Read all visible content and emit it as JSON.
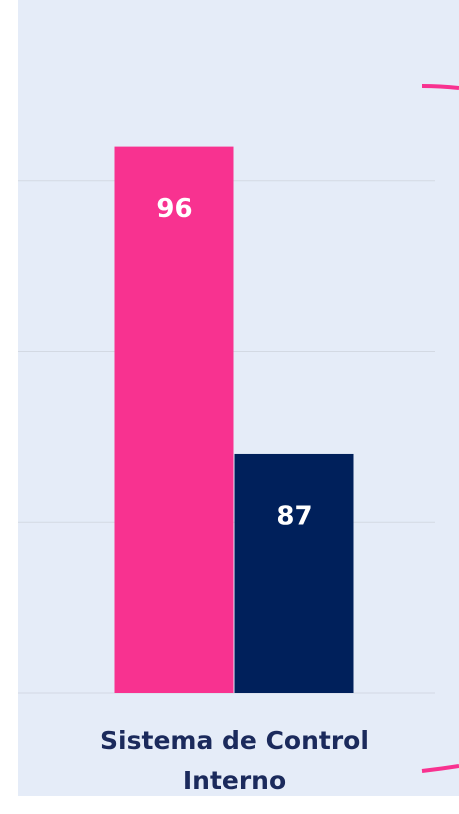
{
  "chart_data": {
    "type": "bar",
    "categories": [
      "Sistema de Control Interno"
    ],
    "series": [
      {
        "color": "#f83290",
        "values": [
          96
        ]
      },
      {
        "color": "#00205b",
        "values": [
          87
        ]
      }
    ],
    "ylim": [
      80,
      100
    ],
    "yticks": [
      80,
      85,
      90,
      95
    ],
    "grid": true
  }
}
